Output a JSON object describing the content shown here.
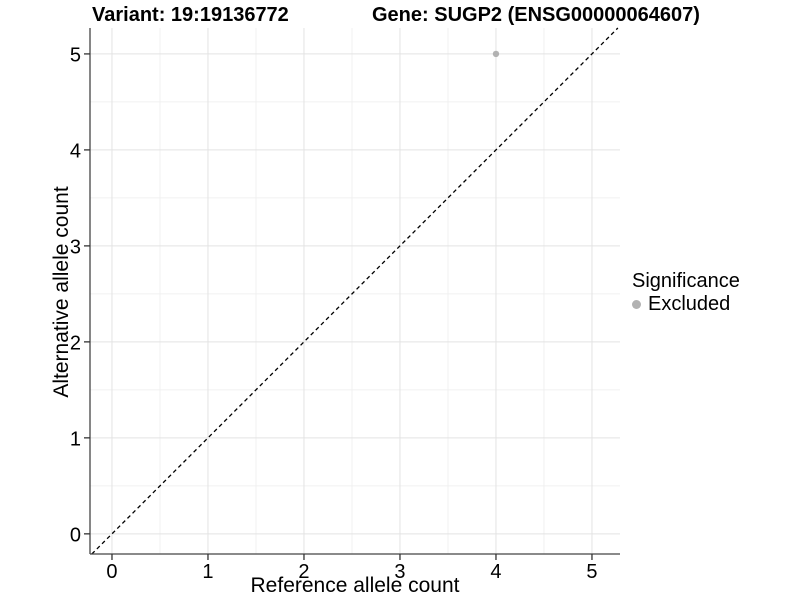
{
  "titles": {
    "variant": "Variant: 19:19136772",
    "gene": "Gene: SUGP2 (ENSG00000064607)"
  },
  "chart_data": {
    "type": "scatter",
    "title": "Variant: 19:19136772   Gene: SUGP2 (ENSG00000064607)",
    "xlabel": "Reference allele count",
    "ylabel": "Alternative allele count",
    "xlim": [
      -0.229,
      5.292
    ],
    "ylim": [
      -0.21,
      5.27
    ],
    "xticks": [
      0,
      1,
      2,
      3,
      4,
      5
    ],
    "yticks": [
      0,
      1,
      2,
      3,
      4,
      5
    ],
    "minor_break_offset": 0.5,
    "grid": true,
    "points": [
      {
        "x": 4,
        "y": 5,
        "significance": "Excluded"
      }
    ],
    "identity_line": {
      "equation": "y = x",
      "style": "dashed",
      "color": "#000000"
    },
    "legend": {
      "position": "right",
      "title": "Significance",
      "entries": [
        {
          "label": "Excluded",
          "color": "#b2b2b2"
        }
      ]
    },
    "colors": {
      "background": "#ffffff",
      "grid_major": "#e3e3e3",
      "grid_minor": "#f0f0f0",
      "axis_line": "#454545",
      "tick_mark": "#333333",
      "text": "#000000",
      "point": "#b2b2b2"
    }
  }
}
